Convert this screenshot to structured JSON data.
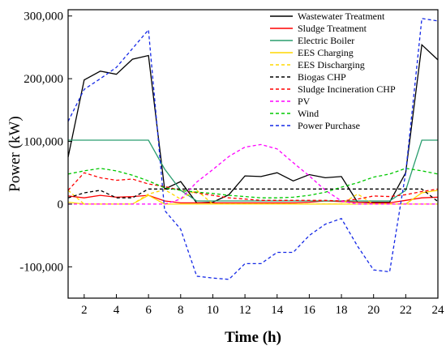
{
  "chart_data": {
    "type": "line",
    "xlabel": "Time (h)",
    "ylabel": "Power (kW)",
    "xlim": [
      1,
      24
    ],
    "ylim": [
      -150000,
      310000
    ],
    "xticks": [
      2,
      4,
      6,
      8,
      10,
      12,
      14,
      16,
      18,
      20,
      22,
      24
    ],
    "xtick_labels": [
      "2",
      "4",
      "6",
      "8",
      "10",
      "12",
      "14",
      "16",
      "18",
      "20",
      "22",
      "24"
    ],
    "yticks": [
      -100000,
      0,
      100000,
      200000,
      300000
    ],
    "ytick_labels": [
      "-100,000",
      "0",
      "100,000",
      "200,000",
      "300,000"
    ],
    "legend_position": "top-right",
    "x": [
      1,
      2,
      3,
      4,
      5,
      6,
      7,
      8,
      9,
      10,
      11,
      12,
      13,
      14,
      15,
      16,
      17,
      18,
      19,
      20,
      21,
      22,
      23,
      24
    ],
    "series": [
      {
        "name": "Wastewater Treatment",
        "color": "#000000",
        "dash": "solid",
        "values": [
          75000,
          198000,
          212000,
          207000,
          231000,
          237000,
          24000,
          36000,
          2000,
          3000,
          15000,
          45000,
          44000,
          50000,
          37000,
          47000,
          42000,
          44000,
          3000,
          3000,
          3000,
          50000,
          254000,
          230000
        ]
      },
      {
        "name": "Sludge Treatment",
        "color": "#ff0000",
        "dash": "solid",
        "values": [
          13000,
          10000,
          14000,
          11000,
          12000,
          14000,
          5000,
          2000,
          2000,
          2000,
          2000,
          2000,
          2000,
          2000,
          2000,
          3000,
          5000,
          4000,
          3000,
          2000,
          2000,
          6000,
          10000,
          11000
        ]
      },
      {
        "name": "Electric Boiler",
        "color": "#2a9d6f",
        "dash": "solid",
        "values": [
          102000,
          102000,
          102000,
          102000,
          102000,
          102000,
          56000,
          22000,
          5000,
          5000,
          5000,
          5000,
          5000,
          5000,
          5000,
          5000,
          5000,
          5000,
          5000,
          5000,
          5000,
          22000,
          102000,
          102000
        ]
      },
      {
        "name": "EES Charging",
        "color": "#ffd700",
        "dash": "solid",
        "values": [
          3000,
          0,
          0,
          0,
          0,
          14000,
          0,
          0,
          0,
          0,
          0,
          0,
          0,
          0,
          0,
          0,
          0,
          0,
          0,
          0,
          0,
          0,
          18000,
          22000
        ]
      },
      {
        "name": "EES Discharging",
        "color": "#ffd700",
        "dash": "dashed",
        "values": [
          22000,
          0,
          0,
          0,
          0,
          16000,
          23000,
          8000,
          22000,
          0,
          0,
          0,
          0,
          0,
          0,
          0,
          0,
          0,
          16000,
          0,
          0,
          0,
          0,
          0
        ]
      },
      {
        "name": "Biogas CHP",
        "color": "#000000",
        "dash": "dashed",
        "values": [
          10000,
          18000,
          22000,
          10000,
          10000,
          24000,
          24000,
          24000,
          24000,
          24000,
          24000,
          24000,
          24000,
          24000,
          24000,
          24000,
          24000,
          24000,
          24000,
          24000,
          24000,
          24000,
          24000,
          4000
        ]
      },
      {
        "name": "Sludge Incineration CHP",
        "color": "#ff0000",
        "dash": "dashed",
        "values": [
          22000,
          50000,
          42000,
          38000,
          40000,
          32000,
          28000,
          22000,
          18000,
          14000,
          10000,
          8000,
          6000,
          6000,
          6000,
          6000,
          6000,
          5000,
          8000,
          13000,
          12000,
          15000,
          20000,
          24000
        ]
      },
      {
        "name": "PV",
        "color": "#ff00ff",
        "dash": "dashed",
        "values": [
          0,
          0,
          0,
          0,
          0,
          0,
          0,
          8000,
          35000,
          55000,
          76000,
          91000,
          95000,
          88000,
          66000,
          45000,
          22000,
          5000,
          0,
          0,
          0,
          0,
          0,
          0
        ]
      },
      {
        "name": "Wind",
        "color": "#00c800",
        "dash": "dashed",
        "values": [
          48000,
          53000,
          57000,
          53000,
          46000,
          37000,
          26000,
          22000,
          19000,
          17000,
          14000,
          12000,
          10000,
          10000,
          11000,
          14000,
          19000,
          27000,
          34000,
          43000,
          48000,
          57000,
          53000,
          48000
        ]
      },
      {
        "name": "Power Purchase",
        "color": "#1428e6",
        "dash": "dashed",
        "values": [
          132000,
          183000,
          200000,
          218000,
          248000,
          278000,
          -10000,
          -40000,
          -115000,
          -118000,
          -120000,
          -95000,
          -95000,
          -77000,
          -77000,
          -50000,
          -32000,
          -23000,
          -67000,
          -105000,
          -108000,
          50000,
          296000,
          292000
        ]
      }
    ]
  }
}
